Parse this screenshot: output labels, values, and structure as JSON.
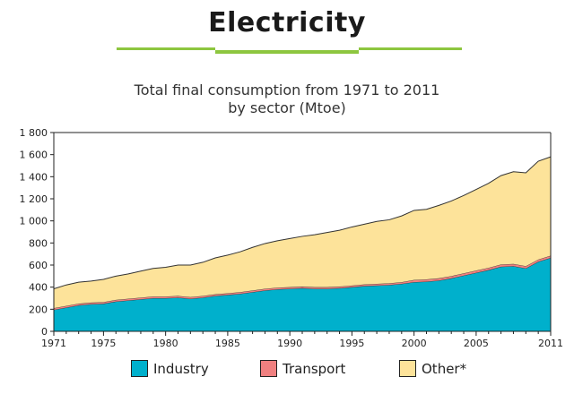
{
  "heading": "Electricity",
  "colors": {
    "industry": "#00b0cc",
    "transport": "#f08080",
    "other": "#fde39a",
    "accent_rule": "#8dc63f"
  },
  "chart_data": {
    "type": "area",
    "stacked": true,
    "title": "Total final consumption from 1971 to 2011",
    "subtitle": "by sector (Mtoe)",
    "x": [
      1971,
      1972,
      1973,
      1974,
      1975,
      1976,
      1977,
      1978,
      1979,
      1980,
      1981,
      1982,
      1983,
      1984,
      1985,
      1986,
      1987,
      1988,
      1989,
      1990,
      1991,
      1992,
      1993,
      1994,
      1995,
      1996,
      1997,
      1998,
      1999,
      2000,
      2001,
      2002,
      2003,
      2004,
      2005,
      2006,
      2007,
      2008,
      2009,
      2010,
      2011
    ],
    "xlim": [
      1971,
      2011
    ],
    "ylim": [
      0,
      1800
    ],
    "x_ticks": [
      1971,
      1975,
      1980,
      1985,
      1990,
      1995,
      2000,
      2005,
      2011
    ],
    "x_tick_labels": [
      "1971",
      "1975",
      "1980",
      "1985",
      "1990",
      "1995",
      "2000",
      "2005",
      "2011"
    ],
    "y_ticks": [
      0,
      200,
      400,
      600,
      800,
      1000,
      1200,
      1400,
      1600,
      1800
    ],
    "y_tick_labels": [
      "0",
      "200",
      "400",
      "600",
      "800",
      "1 000",
      "1 200",
      "1 400",
      "1 600",
      "1 800"
    ],
    "grid": false,
    "legend_position": "bottom",
    "series": [
      {
        "name": "Industry",
        "values": [
          195,
          215,
          235,
          245,
          250,
          270,
          280,
          290,
          300,
          300,
          305,
          295,
          305,
          320,
          330,
          340,
          355,
          370,
          380,
          385,
          390,
          385,
          385,
          390,
          400,
          410,
          415,
          420,
          430,
          445,
          450,
          460,
          480,
          505,
          530,
          555,
          585,
          590,
          570,
          630,
          665
        ]
      },
      {
        "name": "Transport",
        "values": [
          15,
          15,
          15,
          15,
          15,
          15,
          15,
          15,
          15,
          15,
          15,
          15,
          15,
          15,
          15,
          15,
          15,
          15,
          15,
          15,
          15,
          15,
          15,
          15,
          15,
          15,
          15,
          15,
          15,
          20,
          20,
          20,
          20,
          20,
          20,
          20,
          20,
          20,
          20,
          20,
          20
        ]
      },
      {
        "name": "Other*",
        "values": [
          175,
          190,
          195,
          195,
          205,
          215,
          225,
          240,
          255,
          265,
          280,
          290,
          305,
          330,
          345,
          365,
          390,
          410,
          425,
          440,
          455,
          475,
          495,
          510,
          530,
          545,
          565,
          575,
          600,
          630,
          635,
          660,
          680,
          705,
          735,
          765,
          805,
          835,
          845,
          890,
          895
        ]
      }
    ]
  }
}
